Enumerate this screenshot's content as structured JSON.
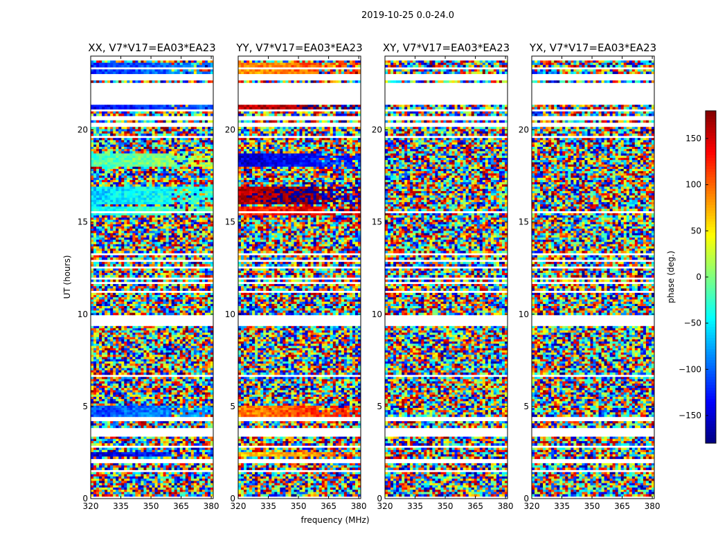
{
  "figure": {
    "suptitle": "2019-10-25 0.0-24.0",
    "xlabel": "frequency (MHz)",
    "ylabel": "UT (hours)"
  },
  "colorbar": {
    "label": "phase (deg.)",
    "range": [
      -180,
      180
    ],
    "ticks": [
      -150,
      -100,
      -50,
      0,
      50,
      100,
      150
    ],
    "colormap": "jet"
  },
  "chart_data": [
    {
      "type": "heatmap",
      "title": "XX, V7*V17=EA03*EA23",
      "xlim": [
        320,
        381
      ],
      "ylim": [
        0,
        24
      ],
      "xticks": [
        320,
        335,
        350,
        365,
        380
      ],
      "yticks": [
        0,
        5,
        10,
        15,
        20
      ],
      "value_unit": "phase (deg.)"
    },
    {
      "type": "heatmap",
      "title": "YY, V7*V17=EA03*EA23",
      "xlim": [
        320,
        381
      ],
      "ylim": [
        0,
        24
      ],
      "xticks": [
        320,
        335,
        350,
        365,
        380
      ],
      "yticks": [
        0,
        5,
        10,
        15,
        20
      ],
      "value_unit": "phase (deg.)"
    },
    {
      "type": "heatmap",
      "title": "XY, V7*V17=EA03*EA23",
      "xlim": [
        320,
        381
      ],
      "ylim": [
        0,
        24
      ],
      "xticks": [
        320,
        335,
        350,
        365,
        380
      ],
      "yticks": [
        0,
        5,
        10,
        15,
        20
      ],
      "value_unit": "phase (deg.)"
    },
    {
      "type": "heatmap",
      "title": "YX, V7*V17=EA03*EA23",
      "xlim": [
        320,
        381
      ],
      "ylim": [
        0,
        24
      ],
      "xticks": [
        320,
        335,
        350,
        365,
        380
      ],
      "yticks": [
        0,
        5,
        10,
        15,
        20
      ],
      "value_unit": "phase (deg.)"
    }
  ]
}
